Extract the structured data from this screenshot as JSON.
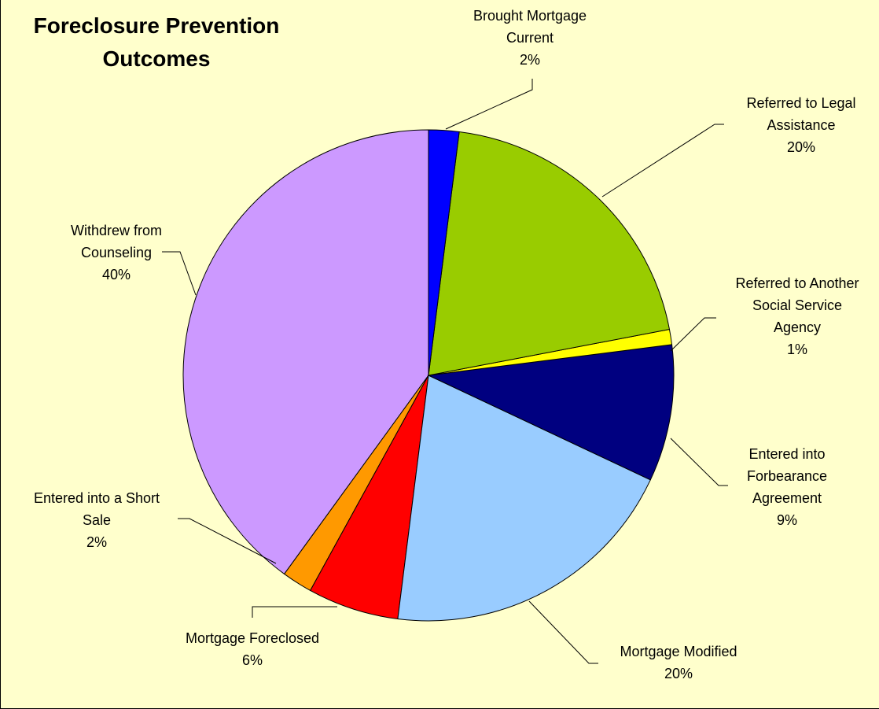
{
  "chart_data": {
    "type": "pie",
    "title": "Foreclosure Prevention\nOutcomes",
    "categories": [
      "Brought Mortgage\nCurrent",
      "Referred to Legal\nAssistance",
      "Referred to Another\nSocial Service\nAgency",
      "Entered into\nForbearance\nAgreement",
      "Mortgage Modified",
      "Mortgage Foreclosed",
      "Entered into a Short\nSale",
      "Withdrew from\nCounseling"
    ],
    "values": [
      2,
      20,
      1,
      9,
      20,
      6,
      2,
      40
    ],
    "value_labels": [
      "2%",
      "20%",
      "1%",
      "9%",
      "20%",
      "6%",
      "2%",
      "40%"
    ],
    "colors": [
      "#0000ff",
      "#99cc00",
      "#ffff00",
      "#000080",
      "#99ccff",
      "#ff0000",
      "#ff9900",
      "#cc99ff"
    ]
  }
}
